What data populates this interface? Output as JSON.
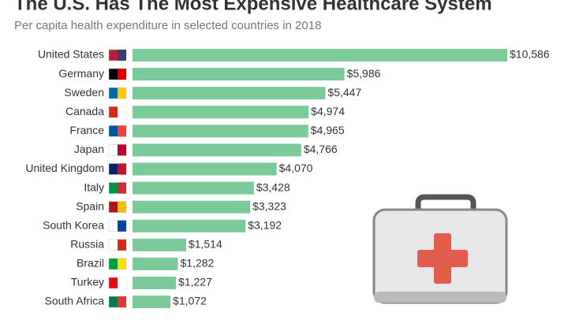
{
  "chart_data": {
    "type": "bar",
    "orientation": "horizontal",
    "title": "The U.S. Has The Most Expensive Healthcare System",
    "subtitle": "Per capita health expenditure in selected countries in 2018",
    "categories": [
      "United States",
      "Germany",
      "Sweden",
      "Canada",
      "France",
      "Japan",
      "United Kingdom",
      "Italy",
      "Spain",
      "South Korea",
      "Russia",
      "Brazil",
      "Turkey",
      "South Africa"
    ],
    "values": [
      10586,
      5986,
      5447,
      4974,
      4965,
      4766,
      4070,
      3428,
      3323,
      3192,
      1514,
      1282,
      1227,
      1072
    ],
    "value_labels": [
      "$10,586",
      "$5,986",
      "$5,447",
      "$4,974",
      "$4,965",
      "$4,766",
      "$4,070",
      "$3,428",
      "$3,323",
      "$3,192",
      "$1,514",
      "$1,282",
      "$1,227",
      "$1,072"
    ],
    "color": "#7cc99a"
  }
}
